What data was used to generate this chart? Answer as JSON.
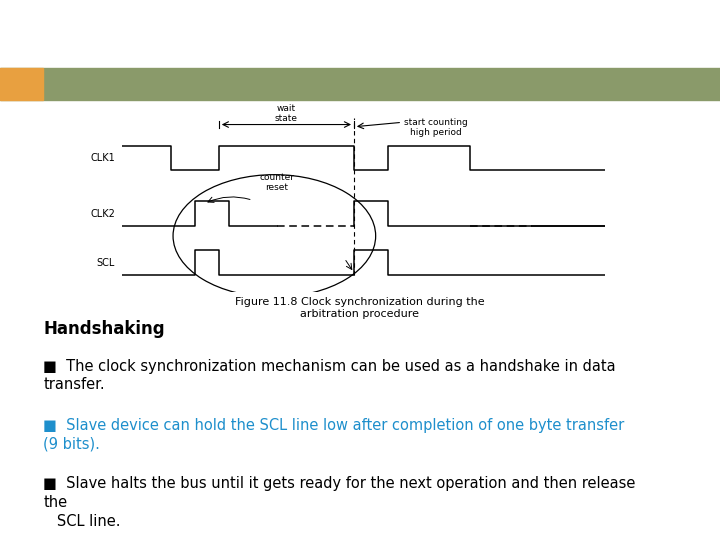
{
  "background_color": "#ffffff",
  "header_bar_color": "#8a9a6a",
  "header_bar_orange": "#e8a040",
  "title": "Handshaking",
  "bullet_fontsize": 10.5,
  "bullet1_text": "§  The clock synchronization mechanism can be used as a handshake in data\ntransfer.",
  "bullet2_text": "§  Slave device can hold the SCL line low after completion of one byte transfer\n(9 bits).",
  "bullet3_text": "§  Slave halts the bus until it gets ready for the next operation and then release\nthe\n   SCL line.",
  "bullet1_color": "#000000",
  "bullet2_color": "#1e8fcc",
  "bullet3_color": "#000000",
  "fig_caption": "Figure 11.8 Clock synchronization during the\narbitration procedure"
}
